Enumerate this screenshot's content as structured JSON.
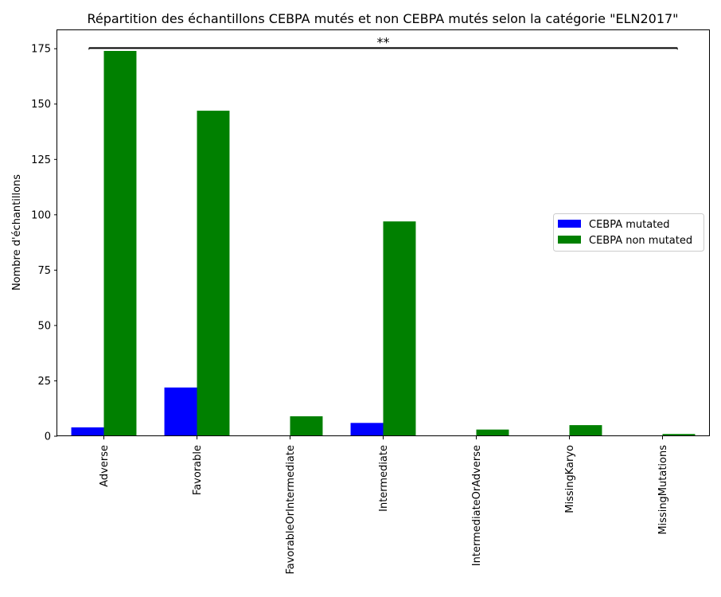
{
  "chart_data": {
    "type": "bar",
    "title": "Répartition des échantillons CEBPA mutés et non CEBPA mutés selon la catégorie \"ELN2017\"",
    "xlabel": "",
    "ylabel": "Nombre d'échantillons",
    "categories": [
      "Adverse",
      "Favorable",
      "FavorableOrIntermediate",
      "Intermediate",
      "IntermediateOrAdverse",
      "MissingKaryo",
      "MissingMutations"
    ],
    "series": [
      {
        "name": "CEBPA mutated",
        "values": [
          4,
          22,
          0,
          6,
          0,
          0,
          0
        ],
        "color": "#0000ff"
      },
      {
        "name": "CEBPA non mutated",
        "values": [
          174,
          147,
          9,
          97,
          3,
          5,
          1
        ],
        "color": "#008000"
      }
    ],
    "ylim": [
      0,
      183.7
    ],
    "yticks": [
      0,
      25,
      50,
      75,
      100,
      125,
      150,
      175
    ],
    "grid": false,
    "legend": {
      "placement": "center-right"
    },
    "annotation": {
      "text": "**",
      "from_category": "Adverse",
      "to_category": "MissingMutations",
      "y": 175.3
    }
  }
}
